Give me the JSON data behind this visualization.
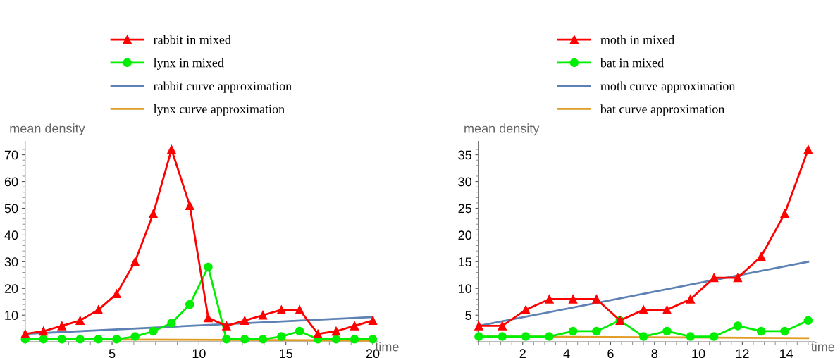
{
  "chart_data": [
    {
      "type": "line",
      "xlabel": "time",
      "ylabel": "mean density",
      "xlim": [
        0,
        20.3
      ],
      "ylim": [
        0,
        75
      ],
      "xticks": [
        5,
        10,
        15,
        20
      ],
      "yticks": [
        10,
        20,
        30,
        40,
        50,
        60,
        70
      ],
      "grid": false,
      "legend": "top",
      "x": [
        0,
        1.05,
        2.11,
        3.16,
        4.21,
        5.26,
        6.32,
        7.37,
        8.42,
        9.47,
        10.53,
        11.58,
        12.63,
        13.68,
        14.74,
        15.79,
        16.84,
        17.89,
        18.95,
        20
      ],
      "series": [
        {
          "name": "rabbit in mixed",
          "color": "#ff0000",
          "marker": "triangle",
          "values": [
            3,
            4,
            6,
            8,
            12,
            18,
            30,
            48,
            72,
            51,
            9,
            6,
            8,
            10,
            12,
            12,
            3,
            4,
            6,
            8
          ]
        },
        {
          "name": "lynx in mixed",
          "color": "#00ee00",
          "marker": "circle",
          "values": [
            1,
            1,
            1,
            1,
            1,
            1,
            2,
            4,
            7,
            14,
            28,
            1,
            1,
            1,
            2,
            4,
            1,
            1,
            1,
            1
          ]
        },
        {
          "name": "rabbit curve approximation",
          "color": "#5e81b5",
          "marker": "none",
          "x": [
            0,
            20
          ],
          "values": [
            3,
            9.3
          ]
        },
        {
          "name": "lynx curve approximation",
          "color": "#e19c24",
          "marker": "none",
          "x": [
            0,
            20
          ],
          "values": [
            1,
            0.5
          ]
        }
      ]
    },
    {
      "type": "line",
      "xlabel": "time",
      "ylabel": "mean density",
      "xlim": [
        0,
        15.3
      ],
      "ylim": [
        0,
        37.5
      ],
      "xticks": [
        2,
        4,
        6,
        8,
        10,
        12,
        14
      ],
      "yticks": [
        5,
        10,
        15,
        20,
        25,
        30,
        35
      ],
      "grid": false,
      "legend": "top",
      "x": [
        0,
        1.07,
        2.14,
        3.21,
        4.29,
        5.36,
        6.43,
        7.5,
        8.57,
        9.64,
        10.71,
        11.79,
        12.86,
        13.93,
        15
      ],
      "series": [
        {
          "name": "moth in mixed",
          "color": "#ff0000",
          "marker": "triangle",
          "values": [
            3,
            3,
            6,
            8,
            8,
            8,
            4,
            6,
            6,
            8,
            12,
            12,
            16,
            24,
            36
          ]
        },
        {
          "name": "bat in mixed",
          "color": "#00ee00",
          "marker": "circle",
          "values": [
            1,
            1,
            1,
            1,
            2,
            2,
            4,
            1,
            2,
            1,
            1,
            3,
            2,
            2,
            4
          ]
        },
        {
          "name": "moth curve approximation",
          "color": "#5e81b5",
          "marker": "none",
          "x": [
            0,
            15
          ],
          "values": [
            3,
            15
          ]
        },
        {
          "name": "bat curve approximation",
          "color": "#e19c24",
          "marker": "none",
          "x": [
            0,
            15
          ],
          "values": [
            1,
            0.7
          ]
        }
      ]
    }
  ]
}
